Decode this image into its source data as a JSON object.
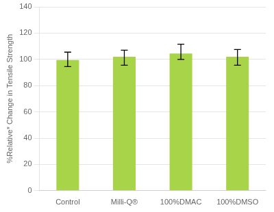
{
  "chart_data": {
    "type": "bar",
    "categories": [
      "Control",
      "Milli-Q®",
      "100%DMAC",
      "100%DMSO"
    ],
    "values": [
      99.5,
      102.0,
      104.5,
      102.0
    ],
    "errors_upper": [
      6.0,
      5.0,
      7.0,
      5.5
    ],
    "errors_lower": [
      5.0,
      6.5,
      4.5,
      6.5
    ],
    "color": "#a8d44a",
    "ylabel": "%Relative* Change in Tensile Strength",
    "ylim": [
      0,
      140
    ],
    "yticks": [
      0,
      20,
      40,
      60,
      80,
      100,
      120,
      140
    ],
    "grid": true
  }
}
